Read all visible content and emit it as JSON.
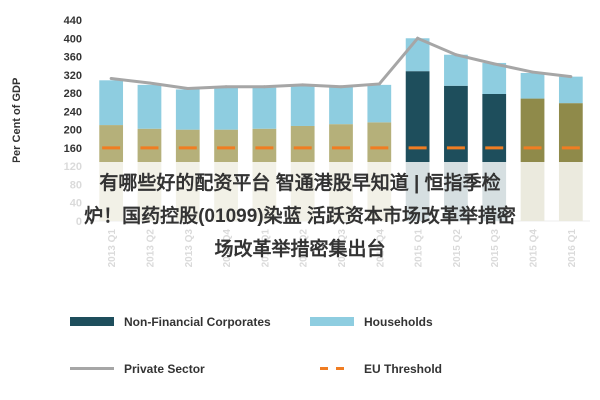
{
  "chart_data": {
    "type": "bar",
    "ylabel": "Per Cent of GDP",
    "ylim": [
      0,
      440
    ],
    "yticks": [
      0,
      40,
      80,
      120,
      160,
      200,
      240,
      280,
      320,
      360,
      400,
      440
    ],
    "categories": [
      "2013 Q1",
      "2013 Q2",
      "2013 Q3",
      "2013 Q4",
      "2014 Q1",
      "2014 Q2",
      "2014 Q3",
      "2014 Q4",
      "2015 Q1",
      "2015 Q2",
      "2015 Q3",
      "2015 Q4",
      "2016 Q1"
    ],
    "series": [
      {
        "name": "Non-Financial Corporates",
        "values": [
          210,
          202,
          200,
          200,
          202,
          208,
          212,
          216,
          328,
          296,
          278,
          268,
          258
        ],
        "colors": [
          "#b5b07a",
          "#b5b07a",
          "#b5b07a",
          "#b5b07a",
          "#b5b07a",
          "#b5b07a",
          "#b5b07a",
          "#b5b07a",
          "#1e4e5c",
          "#1e4e5c",
          "#1e4e5c",
          "#8f8a4a",
          "#8f8a4a"
        ]
      },
      {
        "name": "Households",
        "values": [
          98,
          96,
          88,
          92,
          90,
          88,
          82,
          82,
          72,
          68,
          68,
          56,
          58
        ],
        "colors": [
          "#8ecde0",
          "#8ecde0",
          "#8ecde0",
          "#8ecde0",
          "#8ecde0",
          "#8ecde0",
          "#8ecde0",
          "#8ecde0",
          "#8ecde0",
          "#8ecde0",
          "#8ecde0",
          "#8ecde0",
          "#8ecde0"
        ]
      }
    ],
    "private_sector": {
      "name": "Private Sector",
      "values": [
        312,
        302,
        290,
        294,
        294,
        298,
        294,
        300,
        400,
        364,
        344,
        326,
        316
      ],
      "color": "#a6a6a6"
    },
    "eu_threshold": {
      "name": "EU Threshold",
      "value": 160,
      "color": "#f07d22"
    },
    "legend": {
      "position": "bottom",
      "items": [
        {
          "label": "Non-Financial Corporates",
          "kind": "rect",
          "color": "#1e4e5c"
        },
        {
          "label": "Households",
          "kind": "rect",
          "color": "#8ecde0"
        },
        {
          "label": "Private Sector",
          "kind": "line",
          "color": "#a6a6a6"
        },
        {
          "label": "EU Threshold",
          "kind": "dash",
          "color": "#f07d22"
        }
      ]
    },
    "grid": false
  },
  "overlay": {
    "lines": [
      "有哪些好的配资平台 智通港股早知道 | 恒指季检",
      "炉！国药控股(01099)染蓝 活跃资本市场改革举措密",
      "场改革举措密集出台"
    ]
  }
}
